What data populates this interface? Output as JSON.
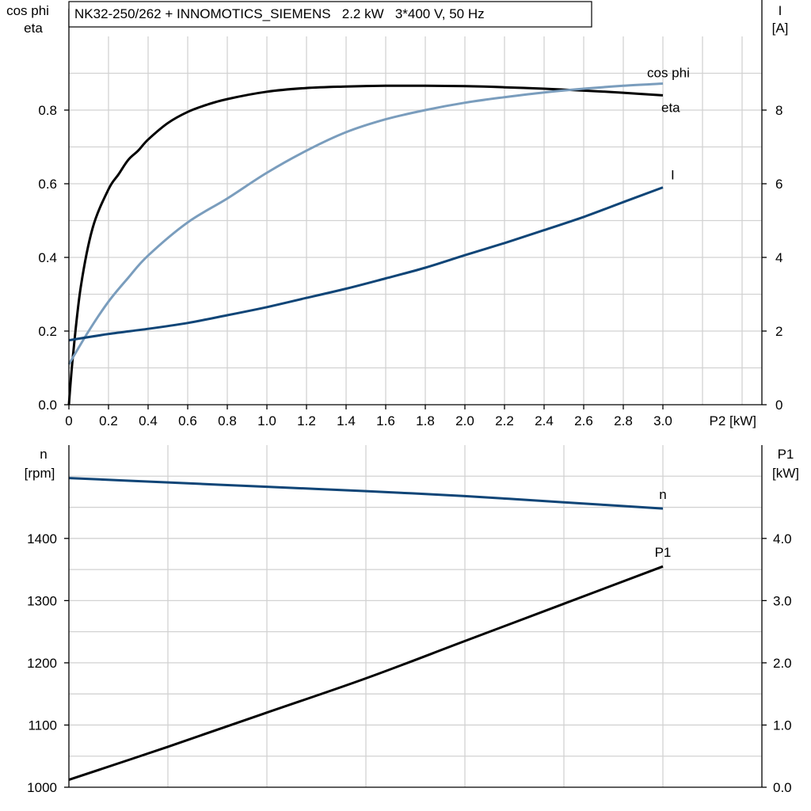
{
  "colors": {
    "eta": "#000000",
    "cos_phi": "#7a9dbd",
    "current": "#0f4577",
    "speed": "#0f4577",
    "p1": "#000000",
    "grid": "#d2d2d2"
  },
  "chart_data": [
    {
      "type": "line",
      "title": "NK32-250/262 + INNOMOTICS_SIEMENS   2.2 kW   3*400 V, 50 Hz",
      "xlabel": "P2 [kW]",
      "ylabel_left_line1": "cos phi",
      "ylabel_left_line2": "eta",
      "ylabel_right_line1": "I",
      "ylabel_right_line2": "[A]",
      "xlim": [
        0,
        3.5
      ],
      "ylim_left": [
        0,
        1.0
      ],
      "ylim_right": [
        0,
        10
      ],
      "x_ticks": [
        0,
        0.2,
        0.4,
        0.6,
        0.8,
        1.0,
        1.2,
        1.4,
        1.6,
        1.8,
        2.0,
        2.2,
        2.4,
        2.6,
        2.8,
        3.0
      ],
      "x_tick_labels": [
        "0",
        "0.2",
        "0.4",
        "0.6",
        "0.8",
        "1.0",
        "1.2",
        "1.4",
        "1.6",
        "1.8",
        "2.0",
        "2.2",
        "2.4",
        "2.6",
        "2.8",
        "3.0"
      ],
      "y_left_ticks": [
        0,
        0.2,
        0.4,
        0.6,
        0.8
      ],
      "y_left_tick_labels": [
        "0.0",
        "0.2",
        "0.4",
        "0.6",
        "0.8"
      ],
      "y_right_ticks": [
        0,
        2,
        4,
        6,
        8
      ],
      "y_right_tick_labels": [
        "0",
        "2",
        "4",
        "6",
        "8"
      ],
      "grid": true,
      "series": [
        {
          "name": "eta",
          "axis": "left",
          "x": [
            0,
            0.02,
            0.06,
            0.12,
            0.2,
            0.25,
            0.3,
            0.35,
            0.4,
            0.5,
            0.6,
            0.7,
            0.8,
            1.0,
            1.2,
            1.4,
            1.6,
            1.8,
            2.0,
            2.2,
            2.4,
            2.6,
            2.8,
            3.0
          ],
          "values": [
            0.0,
            0.13,
            0.32,
            0.48,
            0.585,
            0.625,
            0.665,
            0.69,
            0.72,
            0.765,
            0.795,
            0.815,
            0.83,
            0.85,
            0.86,
            0.864,
            0.866,
            0.866,
            0.865,
            0.862,
            0.858,
            0.853,
            0.847,
            0.84
          ]
        },
        {
          "name": "cos phi",
          "axis": "left",
          "x": [
            0,
            0.1,
            0.2,
            0.3,
            0.4,
            0.6,
            0.8,
            1.0,
            1.2,
            1.4,
            1.6,
            1.8,
            2.0,
            2.2,
            2.4,
            2.6,
            2.8,
            3.0
          ],
          "values": [
            0.11,
            0.2,
            0.28,
            0.345,
            0.405,
            0.495,
            0.56,
            0.63,
            0.69,
            0.74,
            0.775,
            0.8,
            0.82,
            0.835,
            0.848,
            0.858,
            0.866,
            0.872
          ]
        },
        {
          "name": "I",
          "axis": "right",
          "x": [
            0,
            0.2,
            0.4,
            0.6,
            0.8,
            1.0,
            1.2,
            1.4,
            1.6,
            1.8,
            2.0,
            2.2,
            2.4,
            2.6,
            2.8,
            3.0
          ],
          "values": [
            1.75,
            1.92,
            2.06,
            2.22,
            2.43,
            2.65,
            2.9,
            3.15,
            3.43,
            3.72,
            4.06,
            4.39,
            4.74,
            5.1,
            5.5,
            5.9
          ]
        }
      ]
    },
    {
      "type": "line",
      "xlabel": "",
      "ylabel_left_line1": "n",
      "ylabel_left_line2": "[rpm]",
      "ylabel_right_line1": "P1",
      "ylabel_right_line2": "[kW]",
      "xlim": [
        0,
        3.5
      ],
      "ylim_left": [
        1000,
        1550
      ],
      "ylim_right": [
        0,
        5.5
      ],
      "y_left_ticks": [
        1000,
        1100,
        1200,
        1300,
        1400
      ],
      "y_left_tick_labels": [
        "1000",
        "1100",
        "1200",
        "1300",
        "1400"
      ],
      "y_right_ticks": [
        0,
        1,
        2,
        3,
        4
      ],
      "y_right_tick_labels": [
        "0.0",
        "1.0",
        "2.0",
        "3.0",
        "4.0"
      ],
      "grid": true,
      "series": [
        {
          "name": "n",
          "axis": "left",
          "x": [
            0,
            0.5,
            1.0,
            1.5,
            2.0,
            2.5,
            3.0
          ],
          "values": [
            1497,
            1490,
            1483,
            1476,
            1468,
            1458,
            1448
          ]
        },
        {
          "name": "P1",
          "axis": "right",
          "x": [
            0,
            0.5,
            1.0,
            1.5,
            2.0,
            2.5,
            3.0
          ],
          "values": [
            0.12,
            0.65,
            1.2,
            1.75,
            2.35,
            2.95,
            3.55
          ]
        }
      ]
    }
  ]
}
